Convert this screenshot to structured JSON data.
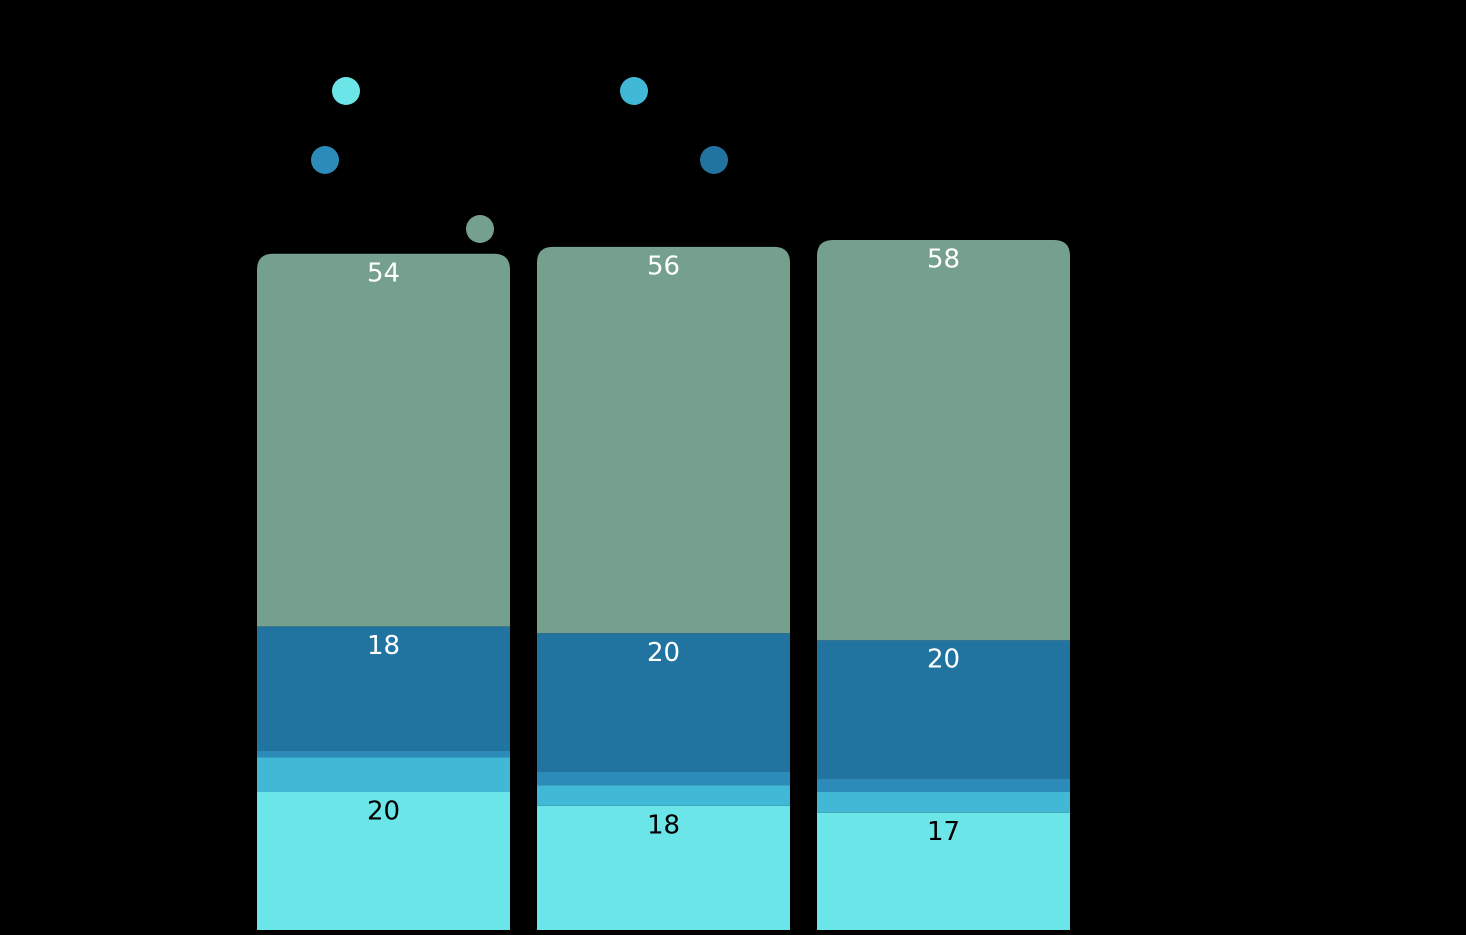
{
  "chart_data": {
    "type": "bar",
    "stacked": true,
    "categories": [
      "",
      "",
      ""
    ],
    "series": [
      {
        "color": "#6ce5e8",
        "values": [
          20,
          18,
          17
        ]
      },
      {
        "color": "#41b8d5",
        "values": [
          5,
          3,
          3
        ]
      },
      {
        "color": "#2d8bba",
        "values": [
          1,
          2,
          2
        ]
      },
      {
        "color": "#2274a0",
        "values": [
          18,
          20,
          20
        ]
      },
      {
        "color": "#76a08e",
        "values": [
          54,
          56,
          58
        ]
      }
    ],
    "data_labels": [
      [
        "20",
        "18",
        "17"
      ],
      [
        "",
        "",
        ""
      ],
      [
        "",
        "",
        ""
      ],
      [
        "18",
        "20",
        "20"
      ],
      [
        "54",
        "56",
        "58"
      ]
    ],
    "label_colors": [
      "#000000",
      "#000000",
      "#ffffff",
      "#ffffff",
      "#ffffff"
    ],
    "legend": {
      "placement": "top",
      "markers": [
        {
          "series": 0,
          "color": "#6ce5e8"
        },
        {
          "series": 1,
          "color": "#41b8d5"
        },
        {
          "series": 2,
          "color": "#2d8bba"
        },
        {
          "series": 3,
          "color": "#2274a0"
        },
        {
          "series": 4,
          "color": "#76a08e"
        }
      ]
    },
    "title": "",
    "xlabel": "",
    "ylabel": "",
    "ylim": [
      0,
      100
    ],
    "grid": false
  }
}
